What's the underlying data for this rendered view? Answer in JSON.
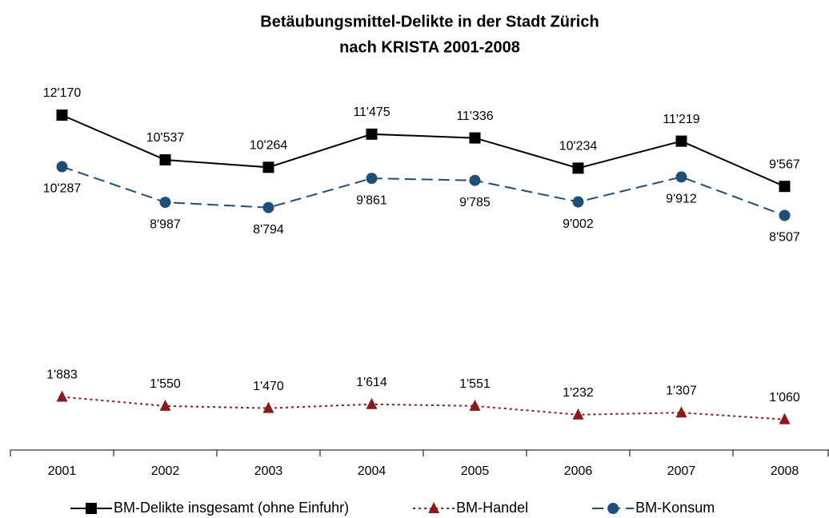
{
  "chart_data": {
    "type": "line",
    "title": [
      "Betäubungsmittel-Delikte in der Stadt Zürich",
      "nach KRISTA 2001-2008"
    ],
    "categories": [
      "2001",
      "2002",
      "2003",
      "2004",
      "2005",
      "2006",
      "2007",
      "2008"
    ],
    "series": [
      {
        "name": "BM-Delikte insgesamt (ohne Einfuhr)",
        "color": "#000000",
        "marker": "square",
        "dash": "solid",
        "values": [
          12170,
          10537,
          10264,
          11475,
          11336,
          10234,
          11219,
          9567
        ],
        "value_labels": [
          "12'170",
          "10'537",
          "10'264",
          "11'475",
          "11'336",
          "10'234",
          "11'219",
          "9'567"
        ]
      },
      {
        "name": "BM-Handel",
        "color": "#8b1a1a",
        "marker": "triangle",
        "dash": "dotted",
        "values": [
          1883,
          1550,
          1470,
          1614,
          1551,
          1232,
          1307,
          1060
        ],
        "value_labels": [
          "1'883",
          "1'550",
          "1'470",
          "1'614",
          "1'551",
          "1'232",
          "1'307",
          "1'060"
        ]
      },
      {
        "name": "BM-Konsum",
        "color": "#1f4e79",
        "marker": "circle",
        "dash": "dashed",
        "values": [
          10287,
          8987,
          8794,
          9861,
          9785,
          9002,
          9912,
          8507
        ],
        "value_labels": [
          "10'287",
          "8'987",
          "8'794",
          "9'861",
          "9'785",
          "9'002",
          "9'912",
          "8'507"
        ]
      }
    ]
  }
}
